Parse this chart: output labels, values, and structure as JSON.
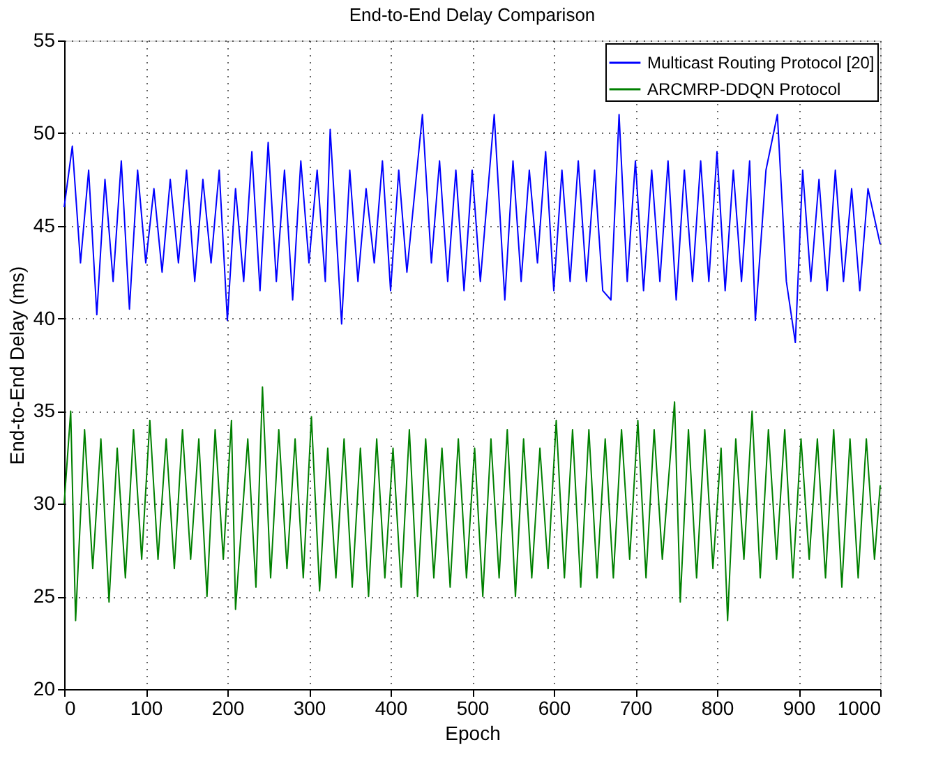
{
  "chart_data": {
    "type": "line",
    "title": "End-to-End Delay Comparison",
    "xlabel": "Epoch",
    "ylabel": "End-to-End Delay (ms)",
    "xlim": [
      0,
      1000
    ],
    "xticks": [
      0,
      100,
      200,
      300,
      400,
      500,
      600,
      700,
      800,
      900,
      1000
    ],
    "ylim": [
      20,
      55
    ],
    "yticks": [
      20,
      25,
      30,
      35,
      40,
      45,
      50,
      55
    ],
    "grid": true,
    "legend": "top right",
    "line_style": "solid",
    "marker": "none",
    "series": [
      {
        "name": "Multicast Routing Protocol [20]",
        "color": "#0000ff",
        "x": [
          0,
          10,
          20,
          30,
          40,
          50,
          60,
          70,
          80,
          90,
          100,
          110,
          120,
          130,
          140,
          150,
          160,
          170,
          180,
          190,
          200,
          210,
          220,
          230,
          240,
          250,
          260,
          270,
          280,
          290,
          300,
          310,
          320,
          326,
          340,
          350,
          360,
          370,
          380,
          390,
          400,
          410,
          420,
          439,
          450,
          460,
          470,
          480,
          490,
          500,
          510,
          527,
          540,
          550,
          560,
          570,
          580,
          590,
          600,
          610,
          620,
          630,
          640,
          650,
          660,
          670,
          680,
          690,
          700,
          710,
          720,
          730,
          740,
          750,
          760,
          770,
          780,
          790,
          800,
          810,
          820,
          830,
          840,
          847,
          860,
          874,
          885,
          896,
          905,
          915,
          925,
          935,
          945,
          955,
          965,
          975,
          985,
          1000
        ],
        "values": [
          46,
          49.3,
          43,
          48,
          40.2,
          47.5,
          42,
          48.5,
          40.5,
          48,
          43,
          47,
          42.5,
          47.5,
          43,
          48,
          42,
          47.5,
          43,
          48,
          39.9,
          47,
          42,
          49,
          41.5,
          49.5,
          42,
          48,
          41,
          48.5,
          43,
          48,
          42,
          50.2,
          39.7,
          48,
          42,
          47,
          43,
          48.5,
          41.5,
          48,
          42.5,
          51,
          43,
          48.5,
          42,
          48,
          41.5,
          48,
          42,
          51,
          41,
          48.5,
          42,
          48,
          43,
          49,
          41.5,
          48,
          42,
          48.5,
          42,
          48,
          41.5,
          41,
          51,
          42,
          48.5,
          41.5,
          48,
          42,
          48.5,
          41,
          48,
          42,
          48.5,
          42,
          49,
          41.5,
          48,
          42,
          48.5,
          39.9,
          48,
          51,
          42,
          38.7,
          48,
          42,
          47.5,
          41.5,
          48,
          42,
          47,
          41.5,
          47,
          44
        ]
      },
      {
        "name": "ARCMRP-DDQN Protocol",
        "color": "#008000",
        "x": [
          0,
          8,
          14,
          25,
          35,
          45,
          55,
          65,
          75,
          85,
          95,
          105,
          115,
          125,
          135,
          145,
          155,
          165,
          175,
          185,
          195,
          205,
          210,
          225,
          235,
          243,
          253,
          263,
          273,
          283,
          293,
          303,
          313,
          323,
          333,
          343,
          353,
          363,
          373,
          383,
          393,
          403,
          413,
          423,
          433,
          443,
          453,
          463,
          473,
          483,
          493,
          503,
          513,
          523,
          533,
          543,
          553,
          563,
          573,
          583,
          593,
          603,
          613,
          623,
          633,
          643,
          653,
          663,
          673,
          683,
          693,
          703,
          713,
          723,
          733,
          748,
          755,
          765,
          775,
          785,
          795,
          805,
          813,
          823,
          833,
          843,
          853,
          863,
          873,
          883,
          893,
          903,
          913,
          923,
          933,
          943,
          953,
          963,
          973,
          983,
          993,
          1000
        ],
        "values": [
          30,
          35,
          23.7,
          34,
          26.5,
          33.5,
          24.7,
          33,
          26,
          34,
          27,
          34.5,
          27,
          33.5,
          26.5,
          34,
          27,
          33.5,
          25,
          34,
          27,
          34.5,
          24.3,
          33.5,
          25.5,
          36.3,
          26,
          34,
          26.5,
          33.5,
          26,
          34.7,
          25.3,
          33,
          26,
          33.5,
          25.5,
          33,
          25,
          33.5,
          26,
          33,
          25.5,
          34,
          25,
          33.5,
          26,
          33,
          25.5,
          33.5,
          26,
          33,
          25,
          33.5,
          26,
          34,
          25,
          33.5,
          26,
          33,
          26.5,
          34.5,
          26,
          34,
          25.5,
          34,
          26,
          33.5,
          26,
          34,
          27,
          34.5,
          26,
          34,
          27,
          35.5,
          24.7,
          34,
          26,
          34,
          26.5,
          33,
          23.7,
          33.5,
          27,
          35,
          26,
          34,
          27,
          34,
          26,
          33.5,
          27,
          33.5,
          26,
          34,
          25.5,
          33.5,
          26,
          33.5,
          27,
          31
        ]
      }
    ]
  }
}
